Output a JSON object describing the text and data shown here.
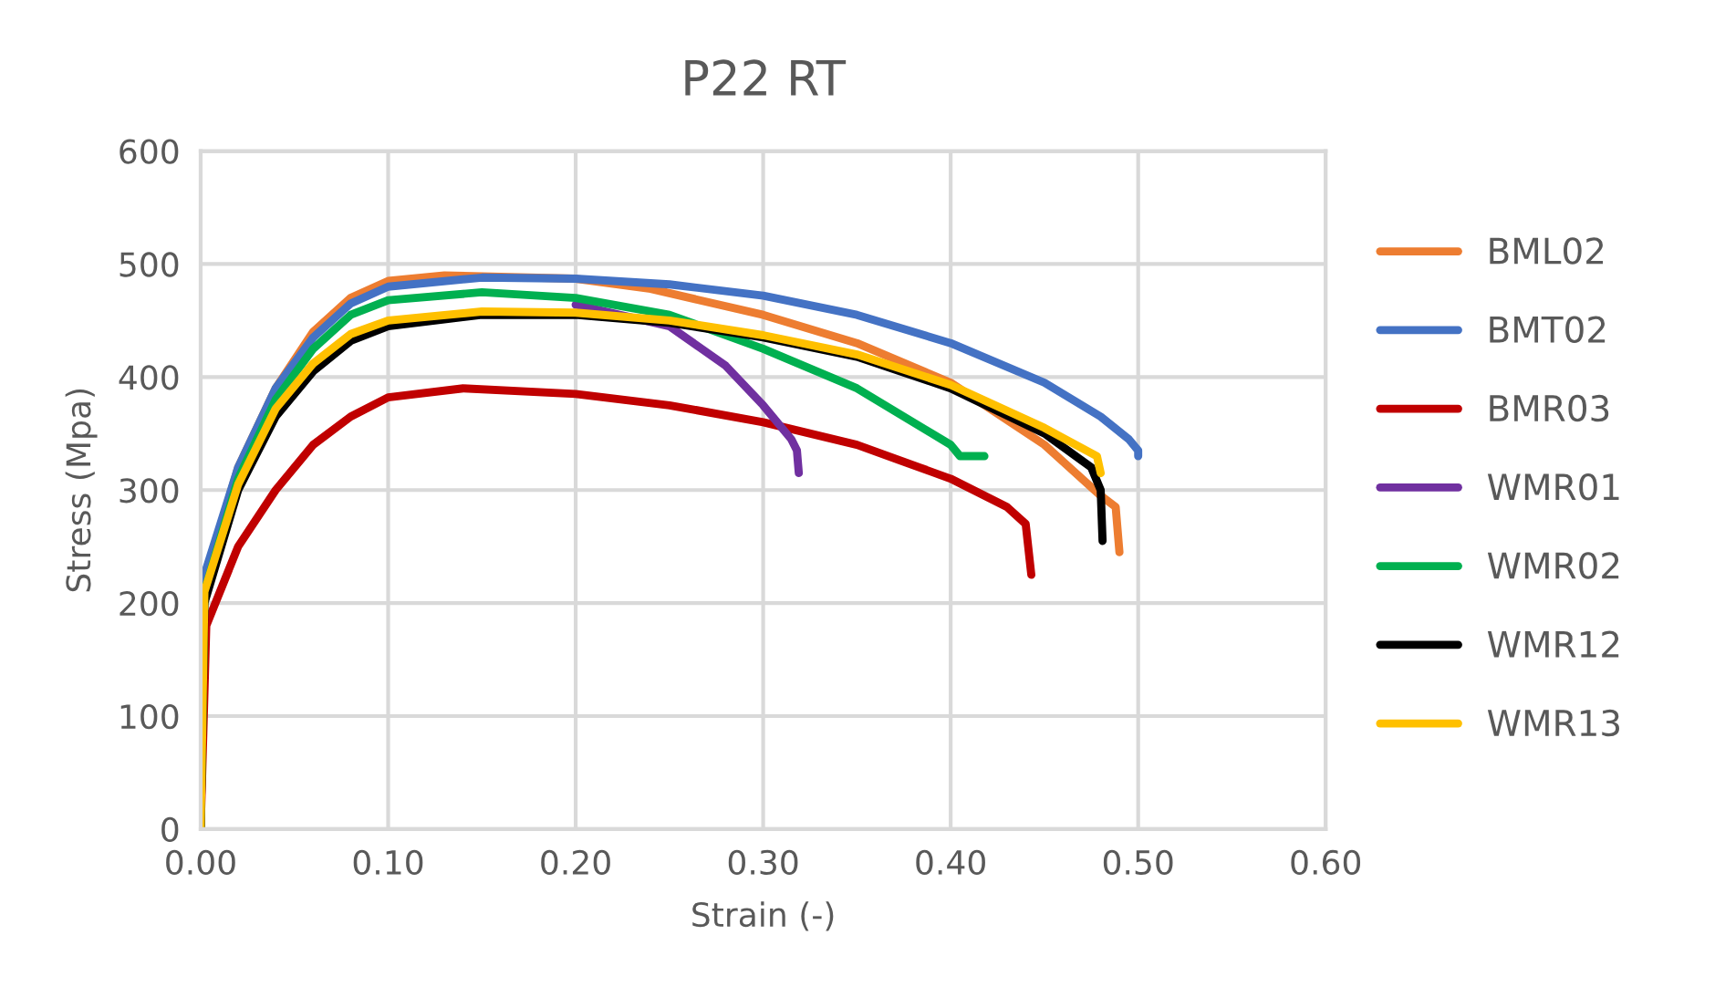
{
  "chart_data": {
    "type": "line",
    "title": "P22 RT",
    "xlabel": "Strain (-)",
    "ylabel": "Stress (Mpa)",
    "xlim": [
      0,
      0.6
    ],
    "ylim": [
      0,
      600
    ],
    "xticks": [
      {
        "value": 0,
        "label": "0.00"
      },
      {
        "value": 0.1,
        "label": "0.10"
      },
      {
        "value": 0.2,
        "label": "0.20"
      },
      {
        "value": 0.3,
        "label": "0.30"
      },
      {
        "value": 0.4,
        "label": "0.40"
      },
      {
        "value": 0.5,
        "label": "0.50"
      },
      {
        "value": 0.6,
        "label": "0.60"
      }
    ],
    "yticks": [
      0,
      100,
      200,
      300,
      400,
      500,
      600
    ],
    "grid": true,
    "legend": "right",
    "marker": "none",
    "line_style": "solid",
    "series": [
      {
        "name": "BML02",
        "color": "#ed7d31",
        "x": [
          0,
          0.002,
          0.02,
          0.04,
          0.06,
          0.08,
          0.1,
          0.13,
          0.2,
          0.24,
          0.3,
          0.35,
          0.4,
          0.45,
          0.48,
          0.488,
          0.49
        ],
        "values": [
          0,
          220,
          320,
          390,
          440,
          470,
          485,
          490,
          487,
          478,
          455,
          430,
          395,
          340,
          295,
          285,
          245
        ]
      },
      {
        "name": "BMT02",
        "color": "#4472c4",
        "x": [
          0,
          0.002,
          0.02,
          0.04,
          0.06,
          0.08,
          0.1,
          0.15,
          0.2,
          0.25,
          0.3,
          0.35,
          0.4,
          0.45,
          0.48,
          0.495,
          0.5,
          0.5
        ],
        "values": [
          0,
          225,
          320,
          390,
          435,
          465,
          480,
          488,
          487,
          482,
          472,
          455,
          430,
          395,
          365,
          345,
          335,
          330
        ]
      },
      {
        "name": "BMR03",
        "color": "#c00000",
        "x": [
          0,
          0.003,
          0.02,
          0.04,
          0.06,
          0.08,
          0.1,
          0.14,
          0.2,
          0.25,
          0.3,
          0.35,
          0.4,
          0.43,
          0.44,
          0.443
        ],
        "values": [
          0,
          180,
          250,
          300,
          340,
          365,
          382,
          390,
          385,
          375,
          360,
          340,
          310,
          285,
          270,
          225
        ]
      },
      {
        "name": "WMR01",
        "color": "#7030a0",
        "x": [
          0.2,
          0.25,
          0.28,
          0.3,
          0.315,
          0.318,
          0.319
        ],
        "values": [
          464,
          445,
          410,
          375,
          345,
          335,
          315
        ]
      },
      {
        "name": "WMR02",
        "color": "#00b050",
        "x": [
          0,
          0.002,
          0.02,
          0.04,
          0.06,
          0.08,
          0.1,
          0.15,
          0.2,
          0.25,
          0.3,
          0.35,
          0.4,
          0.405,
          0.418
        ],
        "values": [
          0,
          210,
          310,
          380,
          425,
          455,
          468,
          475,
          470,
          455,
          425,
          390,
          340,
          330,
          330
        ]
      },
      {
        "name": "WMR12",
        "color": "#000000",
        "x": [
          0,
          0.002,
          0.02,
          0.04,
          0.06,
          0.08,
          0.1,
          0.15,
          0.2,
          0.25,
          0.3,
          0.35,
          0.4,
          0.45,
          0.475,
          0.48,
          0.481
        ],
        "values": [
          0,
          200,
          300,
          365,
          405,
          432,
          445,
          455,
          455,
          448,
          435,
          418,
          390,
          350,
          320,
          300,
          255
        ]
      },
      {
        "name": "WMR13",
        "color": "#ffc000",
        "x": [
          0,
          0.002,
          0.02,
          0.04,
          0.06,
          0.08,
          0.1,
          0.15,
          0.2,
          0.25,
          0.3,
          0.35,
          0.4,
          0.45,
          0.478,
          0.48
        ],
        "values": [
          0,
          210,
          305,
          372,
          412,
          438,
          450,
          458,
          457,
          450,
          437,
          420,
          393,
          355,
          330,
          315
        ]
      }
    ]
  }
}
